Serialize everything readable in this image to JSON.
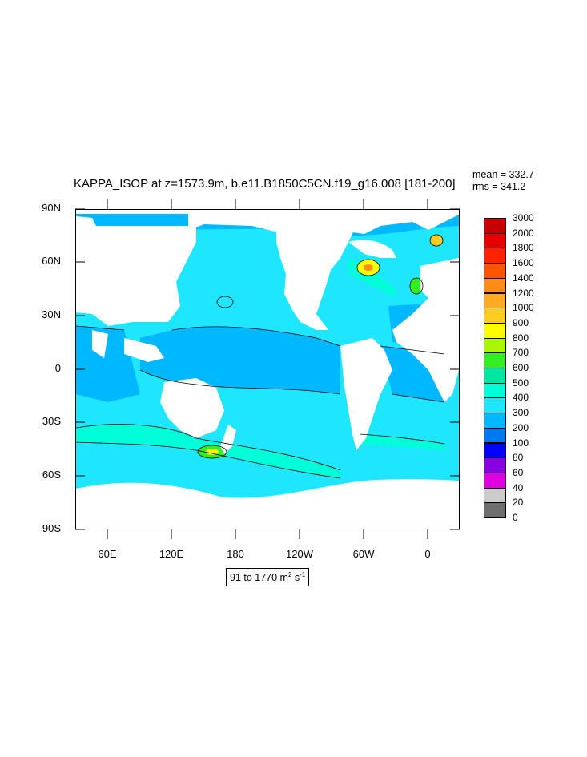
{
  "title": "KAPPA_ISOP at z=1573.9m, b.e11.B1850C5CN.f19_g16.008 [181-200]",
  "stats": {
    "mean": "mean = 332.7",
    "rms": "rms = 341.2"
  },
  "y_tick_labels": [
    "90N",
    "60N",
    "30N",
    "0",
    "30S",
    "60S",
    "90S"
  ],
  "x_tick_labels": [
    "60E",
    "120E",
    "180",
    "120W",
    "60W",
    "0"
  ],
  "colorbar": {
    "levels": [
      "3000",
      "2000",
      "1800",
      "1600",
      "1400",
      "1200",
      "1000",
      "900",
      "800",
      "700",
      "600",
      "500",
      "400",
      "300",
      "200",
      "100",
      "80",
      "60",
      "40",
      "20",
      "0"
    ],
    "colors": [
      "#c80000",
      "#e60000",
      "#ff2200",
      "#ff5500",
      "#ff8c1a",
      "#ffaa22",
      "#ffcc22",
      "#ffff00",
      "#aaf500",
      "#33ee22",
      "#00e6a0",
      "#00ffd8",
      "#1ee6ff",
      "#00b8ff",
      "#0078f0",
      "#0000ff",
      "#8800dd",
      "#e000e0",
      "#cccccc",
      "#6e6e6e"
    ]
  },
  "units": {
    "text": "91 to 1770 m",
    "exp2": "2",
    "s": " s",
    "exp_neg1": "-1"
  },
  "map_colors": {
    "ocean_400": "#1ee6ff",
    "ocean_300": "#00b8ff",
    "ocean_500": "#00ffd8",
    "ocean_200": "#0078f0",
    "land": "#ffffff"
  }
}
